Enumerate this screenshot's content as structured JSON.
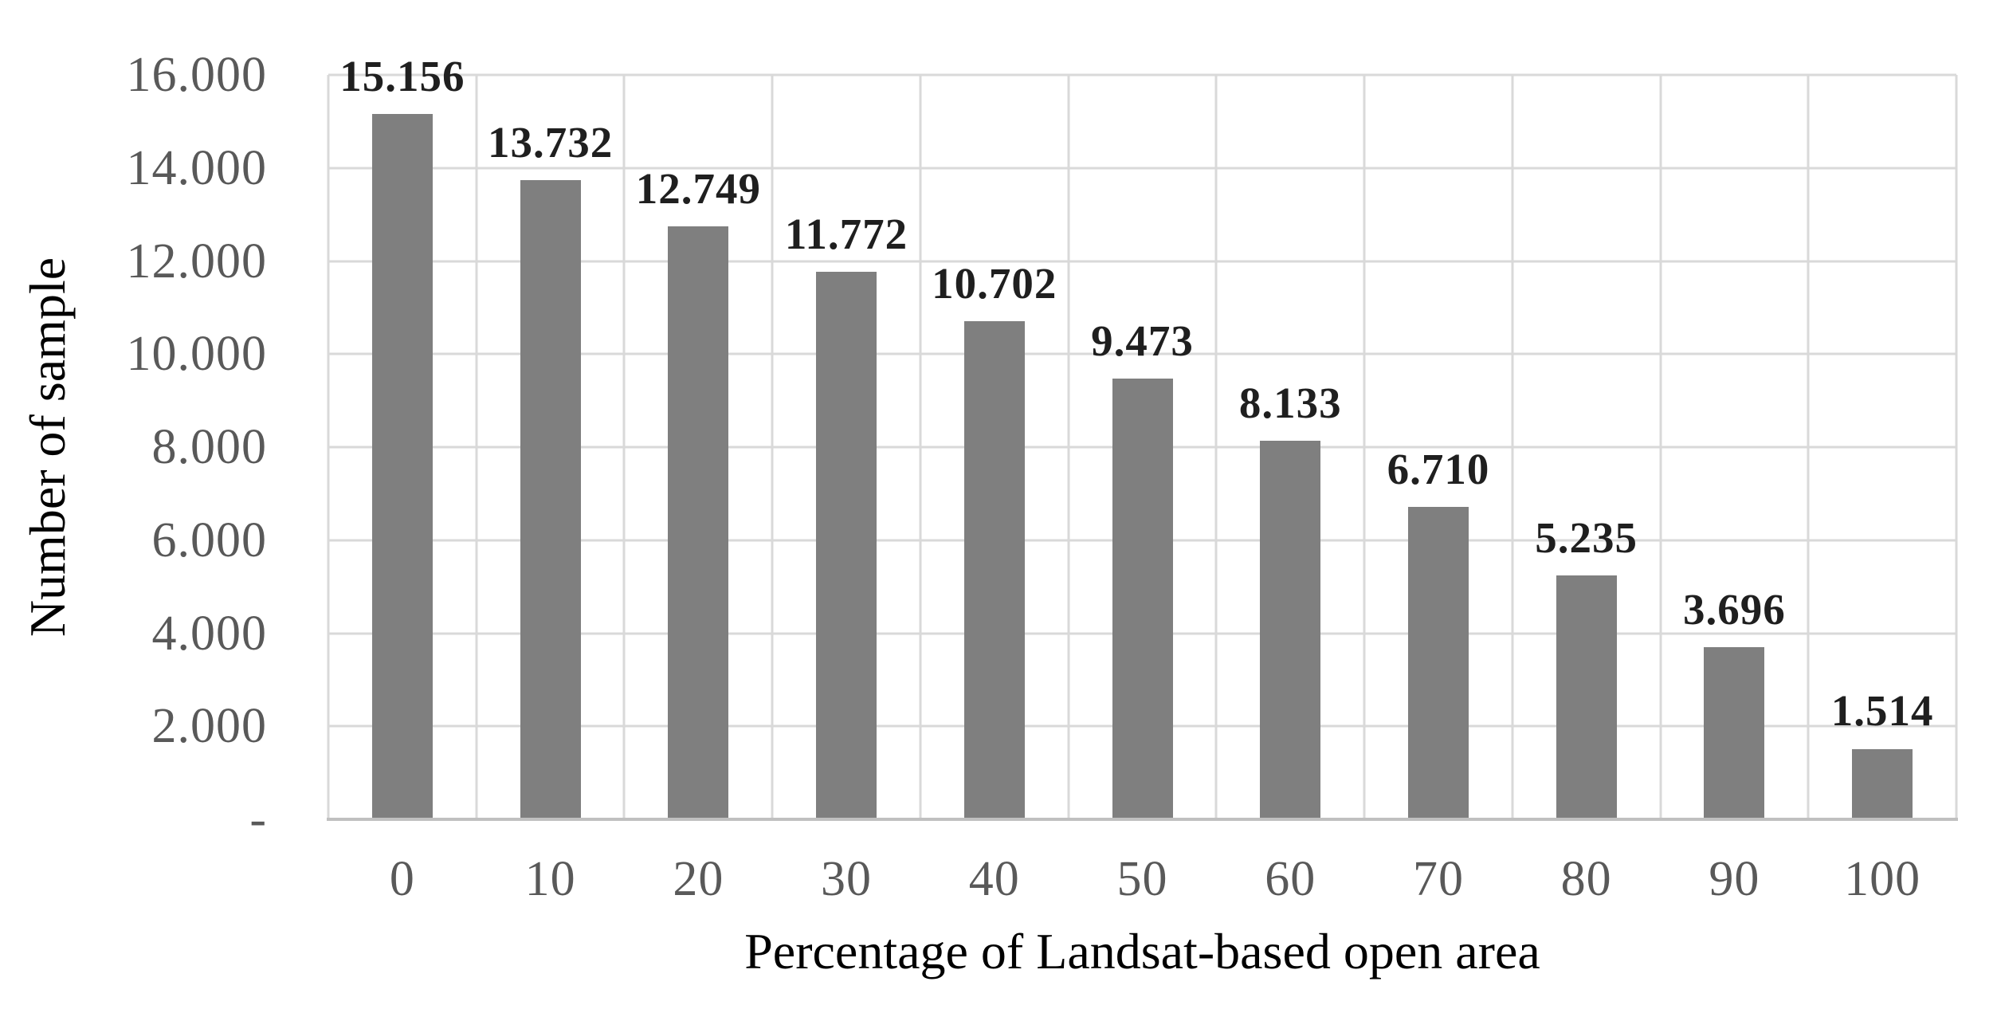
{
  "chart_data": {
    "type": "bar",
    "title": "",
    "xlabel": "Percentage of Landsat-based open area",
    "ylabel": "Number of sample",
    "categories": [
      "0",
      "10",
      "20",
      "30",
      "40",
      "50",
      "60",
      "70",
      "80",
      "90",
      "100"
    ],
    "values": [
      15156,
      13732,
      12749,
      11772,
      10702,
      9473,
      8133,
      6710,
      5235,
      3696,
      1514
    ],
    "value_labels": [
      "15.156",
      "13.732",
      "12.749",
      "11.772",
      "10.702",
      "9.473",
      "8.133",
      "6.710",
      "5.235",
      "3.696",
      "1.514"
    ],
    "y_ticks": [
      {
        "value": 16000,
        "label": "16.000"
      },
      {
        "value": 14000,
        "label": "14.000"
      },
      {
        "value": 12000,
        "label": "12.000"
      },
      {
        "value": 10000,
        "label": "10.000"
      },
      {
        "value": 8000,
        "label": "8.000"
      },
      {
        "value": 6000,
        "label": "6.000"
      },
      {
        "value": 4000,
        "label": "4.000"
      },
      {
        "value": 2000,
        "label": "2.000"
      },
      {
        "value": 0,
        "label": "-"
      }
    ],
    "ylim": [
      0,
      16000
    ],
    "grid": "both",
    "legend": "none",
    "colors": {
      "bar": "#7f7f7f",
      "gridline": "#d9d9d9",
      "axis_line": "#c0c0c0",
      "tick_text": "#595959",
      "data_label_text": "#1f1f1f",
      "title_text": "#000000",
      "background": "#ffffff"
    }
  }
}
